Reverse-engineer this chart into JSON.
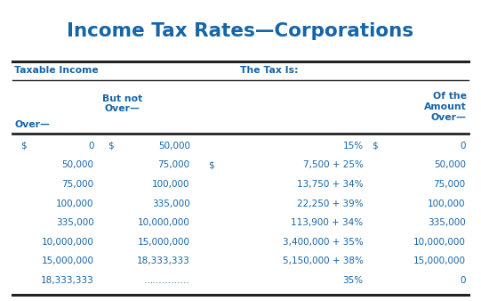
{
  "title": "Income Tax Rates—Corporations",
  "title_color": "#1565a8",
  "title_fontsize": 15.5,
  "header1_left": "Taxable Income",
  "header1_right": "The Tax Is:",
  "rows": [
    [
      "$",
      "0",
      "$",
      "50,000",
      "",
      "15%",
      "$",
      "0"
    ],
    [
      "",
      "50,000",
      "",
      "75,000",
      "$",
      "7,500 + 25%",
      "",
      "50,000"
    ],
    [
      "",
      "75,000",
      "",
      "100,000",
      "",
      "13,750 + 34%",
      "",
      "75,000"
    ],
    [
      "",
      "100,000",
      "",
      "335,000",
      "",
      "22,250 + 39%",
      "",
      "100,000"
    ],
    [
      "",
      "335,000",
      "",
      "10,000,000",
      "",
      "113,900 + 34%",
      "",
      "335,000"
    ],
    [
      "",
      "10,000,000",
      "",
      "15,000,000",
      "",
      "3,400,000 + 35%",
      "",
      "10,000,000"
    ],
    [
      "",
      "15,000,000",
      "",
      "18,333,333",
      "",
      "5,150,000 + 38%",
      "",
      "15,000,000"
    ],
    [
      "",
      "18,333,333",
      "",
      "……………",
      "",
      "35%",
      "",
      "0"
    ]
  ],
  "text_color": "#1565a8",
  "bg_color": "#ffffff",
  "line_color": "#222222"
}
